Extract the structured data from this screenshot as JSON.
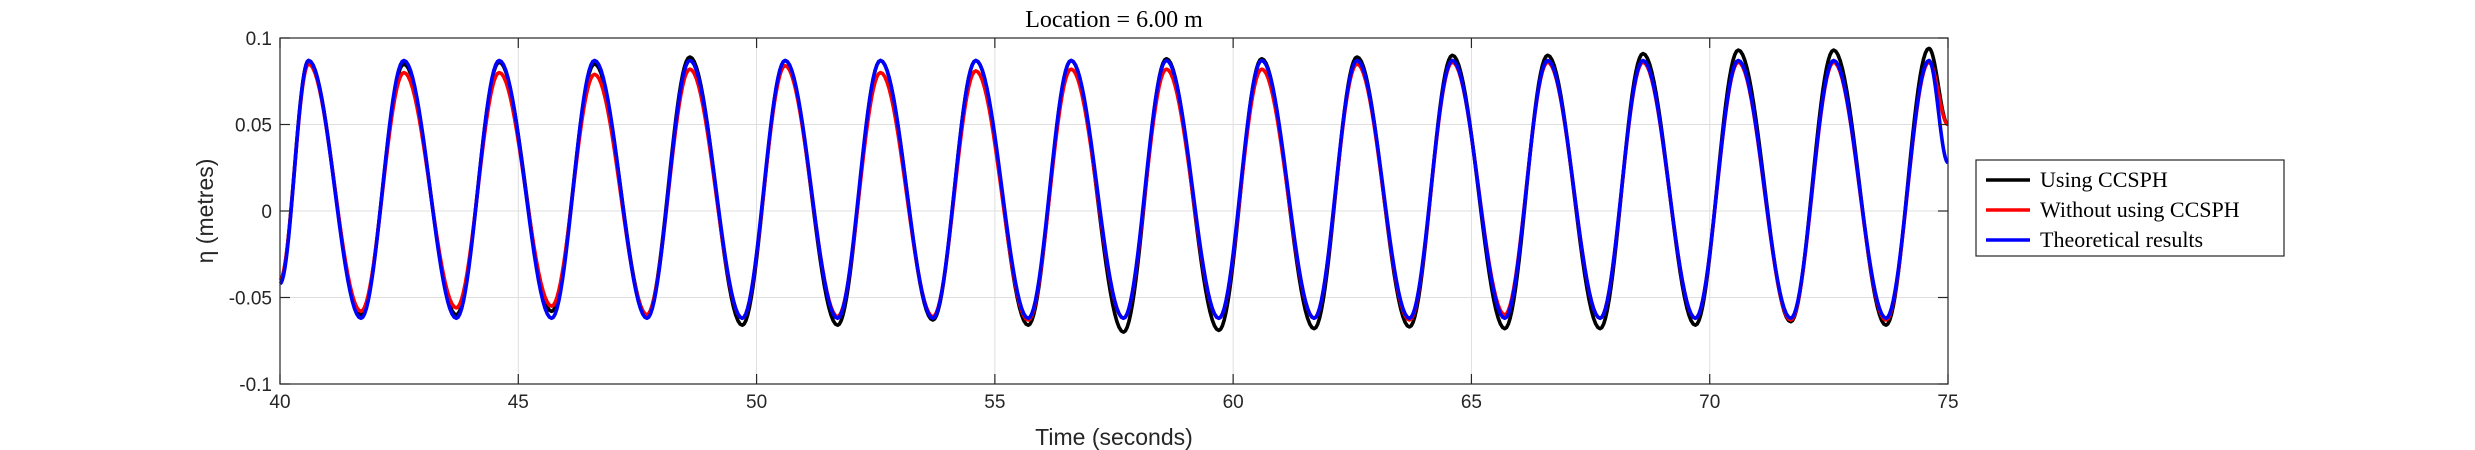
{
  "chart_data": {
    "type": "line",
    "title": "Location = 6.00 m",
    "xlabel": "Time (seconds)",
    "ylabel": "η (metres)",
    "xlim": [
      40,
      75
    ],
    "ylim": [
      -0.1,
      0.1
    ],
    "x_ticks": [
      40,
      45,
      50,
      55,
      60,
      65,
      70,
      75
    ],
    "y_ticks": [
      -0.1,
      -0.05,
      0,
      0.05,
      0.1
    ],
    "x_tick_labels": [
      "40",
      "45",
      "50",
      "55",
      "60",
      "65",
      "70",
      "75"
    ],
    "y_tick_labels": [
      "-0.1",
      "-0.05",
      "0",
      "0.05",
      "0.1"
    ],
    "grid": true,
    "legend_position": "right-outside",
    "wave_period": 2.0,
    "series": [
      {
        "name": "Using CCSPH",
        "color": "#000000",
        "x": [
          40.0,
          40.6,
          41.7,
          42.6,
          43.7,
          44.6,
          45.7,
          46.6,
          47.7,
          48.6,
          49.7,
          50.6,
          51.7,
          52.6,
          53.7,
          54.6,
          55.7,
          56.6,
          57.7,
          58.6,
          59.7,
          60.6,
          61.7,
          62.6,
          63.7,
          64.6,
          65.7,
          66.6,
          67.7,
          68.6,
          69.7,
          70.6,
          71.7,
          72.6,
          73.7,
          74.6,
          75.0
        ],
        "y": [
          -0.04,
          0.087,
          -0.06,
          0.085,
          -0.06,
          0.086,
          -0.058,
          0.085,
          -0.06,
          0.089,
          -0.066,
          0.087,
          -0.066,
          0.087,
          -0.063,
          0.087,
          -0.066,
          0.087,
          -0.07,
          0.088,
          -0.069,
          0.088,
          -0.068,
          0.089,
          -0.067,
          0.09,
          -0.068,
          0.09,
          -0.068,
          0.091,
          -0.066,
          0.093,
          -0.064,
          0.093,
          -0.066,
          0.094,
          0.05
        ]
      },
      {
        "name": "Without using CCSPH",
        "color": "#ff0000",
        "x": [
          40.0,
          40.6,
          41.7,
          42.6,
          43.7,
          44.6,
          45.7,
          46.6,
          47.7,
          48.6,
          49.7,
          50.6,
          51.7,
          52.6,
          53.7,
          54.6,
          55.7,
          56.6,
          57.7,
          58.6,
          59.7,
          60.6,
          61.7,
          62.6,
          63.7,
          64.6,
          65.7,
          66.6,
          67.7,
          68.6,
          69.7,
          70.6,
          71.7,
          72.6,
          73.7,
          74.6,
          75.0
        ],
        "y": [
          -0.04,
          0.085,
          -0.058,
          0.08,
          -0.056,
          0.08,
          -0.055,
          0.079,
          -0.06,
          0.082,
          -0.062,
          0.084,
          -0.061,
          0.08,
          -0.061,
          0.081,
          -0.063,
          0.082,
          -0.062,
          0.082,
          -0.062,
          0.082,
          -0.062,
          0.085,
          -0.063,
          0.086,
          -0.06,
          0.086,
          -0.062,
          0.086,
          -0.062,
          0.086,
          -0.063,
          0.086,
          -0.063,
          0.086,
          0.05
        ]
      },
      {
        "name": "Theoretical results",
        "color": "#0000ff",
        "x": [
          40.0,
          40.6,
          41.7,
          42.6,
          43.7,
          44.6,
          45.7,
          46.6,
          47.7,
          48.6,
          49.7,
          50.6,
          51.7,
          52.6,
          53.7,
          54.6,
          55.7,
          56.6,
          57.7,
          58.6,
          59.7,
          60.6,
          61.7,
          62.6,
          63.7,
          64.6,
          65.7,
          66.6,
          67.7,
          68.6,
          69.7,
          70.6,
          71.7,
          72.6,
          73.7,
          74.6,
          75.0
        ],
        "y": [
          -0.042,
          0.087,
          -0.062,
          0.087,
          -0.062,
          0.087,
          -0.062,
          0.087,
          -0.062,
          0.087,
          -0.062,
          0.087,
          -0.062,
          0.087,
          -0.062,
          0.087,
          -0.062,
          0.087,
          -0.062,
          0.087,
          -0.062,
          0.087,
          -0.062,
          0.087,
          -0.062,
          0.087,
          -0.062,
          0.087,
          -0.062,
          0.087,
          -0.062,
          0.087,
          -0.062,
          0.087,
          -0.062,
          0.087,
          0.028
        ]
      }
    ]
  }
}
